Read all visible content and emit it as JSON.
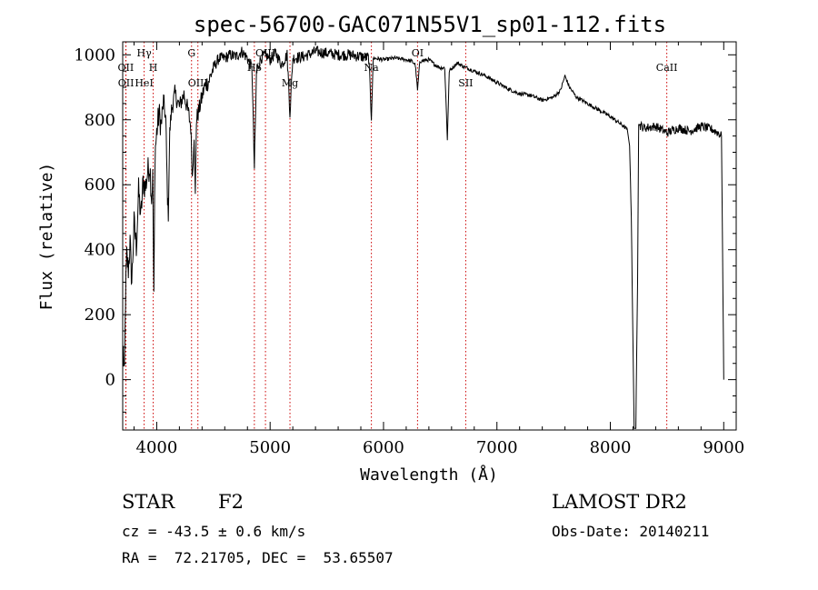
{
  "chart_data": {
    "type": "line",
    "title": "spec-56700-GAC071N55V1_sp01-112.fits",
    "xlabel": "Wavelength (Å)",
    "ylabel": "Flux (relative)",
    "xlim": [
      3700,
      9110
    ],
    "ylim": [
      -155,
      1040
    ],
    "xticks": [
      4000,
      5000,
      6000,
      7000,
      8000,
      9000
    ],
    "yticks": [
      0,
      200,
      400,
      600,
      800,
      1000
    ],
    "grid": false,
    "line_color": "#000000",
    "marker_color": "#cc0000",
    "spectral_lines": [
      {
        "label": "OII",
        "wavelength": 3727,
        "row": 2
      },
      {
        "label": "Hγ",
        "wavelength": 3889,
        "row": 1
      },
      {
        "label": "OII",
        "wavelength": 3729,
        "row": 3
      },
      {
        "label": "HeI",
        "wavelength": 3889,
        "row": 3
      },
      {
        "label": "H",
        "wavelength": 3969,
        "row": 2
      },
      {
        "label": "G",
        "wavelength": 4307,
        "row": 1
      },
      {
        "label": "OIII",
        "wavelength": 4363,
        "row": 3
      },
      {
        "label": "OIII",
        "wavelength": 4959,
        "row": 1
      },
      {
        "label": "Hβ",
        "wavelength": 4861,
        "row": 2
      },
      {
        "label": "Mg",
        "wavelength": 5175,
        "row": 3
      },
      {
        "label": "Na",
        "wavelength": 5893,
        "row": 2
      },
      {
        "label": "OI",
        "wavelength": 6300,
        "row": 1
      },
      {
        "label": "SII",
        "wavelength": 6725,
        "row": 3
      },
      {
        "label": "CaII",
        "wavelength": 8498,
        "row": 2
      }
    ],
    "series": [
      {
        "anchors": [
          [
            3705,
            90
          ],
          [
            3715,
            0
          ],
          [
            3725,
            250
          ],
          [
            3735,
            380
          ],
          [
            3750,
            340
          ],
          [
            3765,
            420
          ],
          [
            3780,
            300
          ],
          [
            3800,
            480
          ],
          [
            3820,
            410
          ],
          [
            3840,
            580
          ],
          [
            3860,
            500
          ],
          [
            3880,
            610
          ],
          [
            3900,
            590
          ],
          [
            3920,
            640
          ],
          [
            3940,
            660
          ],
          [
            3955,
            560
          ],
          [
            3965,
            620
          ],
          [
            3975,
            240
          ],
          [
            3985,
            700
          ],
          [
            4000,
            760
          ],
          [
            4020,
            820
          ],
          [
            4040,
            780
          ],
          [
            4060,
            860
          ],
          [
            4080,
            800
          ],
          [
            4095,
            560
          ],
          [
            4102,
            510
          ],
          [
            4115,
            760
          ],
          [
            4130,
            830
          ],
          [
            4160,
            880
          ],
          [
            4200,
            840
          ],
          [
            4240,
            880
          ],
          [
            4280,
            820
          ],
          [
            4300,
            780
          ],
          [
            4315,
            620
          ],
          [
            4330,
            760
          ],
          [
            4340,
            560
          ],
          [
            4350,
            800
          ],
          [
            4380,
            840
          ],
          [
            4420,
            900
          ],
          [
            4460,
            920
          ],
          [
            4500,
            960
          ],
          [
            4550,
            990
          ],
          [
            4600,
            990
          ],
          [
            4650,
            1000
          ],
          [
            4700,
            995
          ],
          [
            4750,
            1010
          ],
          [
            4800,
            990
          ],
          [
            4840,
            960
          ],
          [
            4861,
            650
          ],
          [
            4880,
            950
          ],
          [
            4920,
            990
          ],
          [
            4960,
            1000
          ],
          [
            5000,
            985
          ],
          [
            5050,
            1005
          ],
          [
            5100,
            970
          ],
          [
            5150,
            1000
          ],
          [
            5175,
            820
          ],
          [
            5200,
            990
          ],
          [
            5300,
            995
          ],
          [
            5400,
            1010
          ],
          [
            5500,
            1005
          ],
          [
            5600,
            1000
          ],
          [
            5700,
            1000
          ],
          [
            5800,
            995
          ],
          [
            5870,
            990
          ],
          [
            5893,
            810
          ],
          [
            5910,
            990
          ],
          [
            6000,
            985
          ],
          [
            6100,
            990
          ],
          [
            6200,
            985
          ],
          [
            6250,
            980
          ],
          [
            6280,
            970
          ],
          [
            6300,
            890
          ],
          [
            6320,
            980
          ],
          [
            6400,
            985
          ],
          [
            6450,
            970
          ],
          [
            6500,
            960
          ],
          [
            6540,
            960
          ],
          [
            6563,
            740
          ],
          [
            6580,
            950
          ],
          [
            6650,
            975
          ],
          [
            6700,
            965
          ],
          [
            6800,
            950
          ],
          [
            6900,
            935
          ],
          [
            7000,
            915
          ],
          [
            7100,
            895
          ],
          [
            7200,
            880
          ],
          [
            7300,
            875
          ],
          [
            7400,
            860
          ],
          [
            7500,
            870
          ],
          [
            7560,
            890
          ],
          [
            7600,
            935
          ],
          [
            7640,
            900
          ],
          [
            7700,
            870
          ],
          [
            7800,
            850
          ],
          [
            7900,
            830
          ],
          [
            8000,
            810
          ],
          [
            8100,
            785
          ],
          [
            8150,
            770
          ],
          [
            8170,
            720
          ],
          [
            8185,
            500
          ],
          [
            8200,
            100
          ],
          [
            8210,
            -150
          ],
          [
            8225,
            -150
          ],
          [
            8240,
            300
          ],
          [
            8250,
            785
          ],
          [
            8300,
            775
          ],
          [
            8400,
            780
          ],
          [
            8500,
            760
          ],
          [
            8600,
            775
          ],
          [
            8700,
            765
          ],
          [
            8800,
            780
          ],
          [
            8900,
            770
          ],
          [
            8950,
            760
          ],
          [
            8980,
            750
          ],
          [
            8990,
            400
          ],
          [
            9000,
            0
          ]
        ]
      }
    ]
  },
  "footer": {
    "object_type": "STAR",
    "subclass": "F2",
    "survey": "LAMOST DR2",
    "cz_text": "cz = -43.5 ± 0.6 km/s",
    "obs_date": "Obs-Date: 20140211",
    "coords": "RA =  72.21705, DEC =  53.65507"
  }
}
